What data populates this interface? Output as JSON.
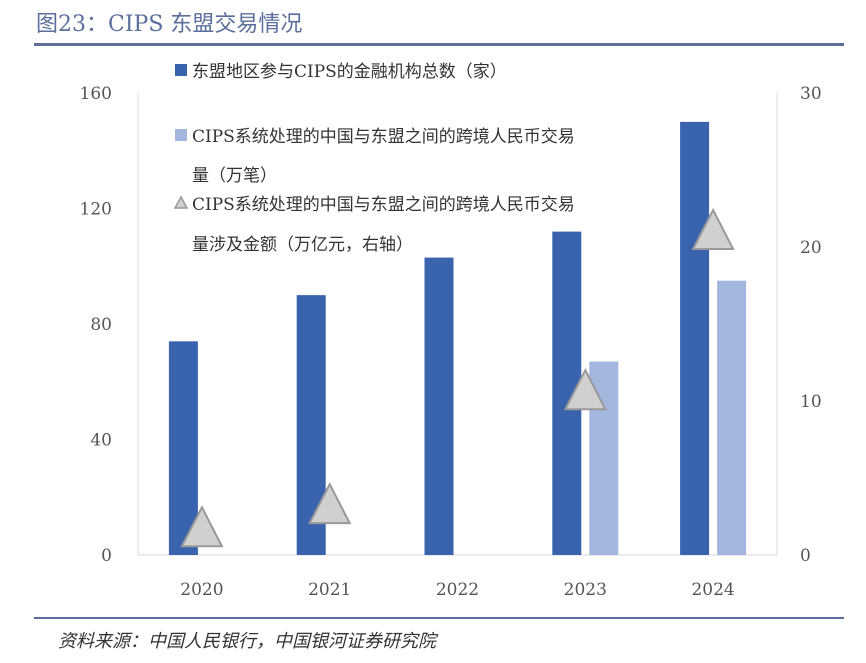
{
  "title": "图23：CIPS 东盟交易情况",
  "source": "资料来源：中国人民银行，中国银河证券研究院",
  "chart_data": {
    "type": "bar",
    "title": "图23：CIPS 东盟交易情况",
    "categories": [
      "2020",
      "2021",
      "2022",
      "2023",
      "2024"
    ],
    "series": [
      {
        "name": "东盟地区参与CIPS的金融机构总数（家）",
        "kind": "bar",
        "axis": "left",
        "color": "#3a63ad",
        "values": [
          74,
          90,
          103,
          112,
          150
        ]
      },
      {
        "name": "CIPS系统处理的中国与东盟之间的跨境人民币交易量（万笔）",
        "legend_lines": [
          "CIPS系统处理的中国与东盟之间的跨境人民币交易",
          "量（万笔）"
        ],
        "kind": "bar",
        "axis": "left",
        "color": "#a3b6de",
        "values": [
          null,
          null,
          null,
          67,
          95
        ]
      },
      {
        "name": "CIPS系统处理的中国与东盟之间的跨境人民币交易量涉及金额（万亿元，右轴）",
        "legend_lines": [
          "CIPS系统处理的中国与东盟之间的跨境人民币交易",
          "量涉及金额（万亿元，右轴）"
        ],
        "kind": "marker-triangle",
        "axis": "right",
        "color": "#d0d0d0",
        "values": [
          1.8,
          3.3,
          null,
          10.7,
          21.1
        ]
      }
    ],
    "left_axis": {
      "ylim": [
        0,
        160
      ],
      "ticks": [
        "0",
        "40",
        "80",
        "120",
        "160"
      ]
    },
    "right_axis": {
      "ylim": [
        0,
        30
      ],
      "ticks": [
        "0",
        "10",
        "20",
        "30"
      ]
    },
    "legend_placement": "top-left inside",
    "grid": false
  }
}
